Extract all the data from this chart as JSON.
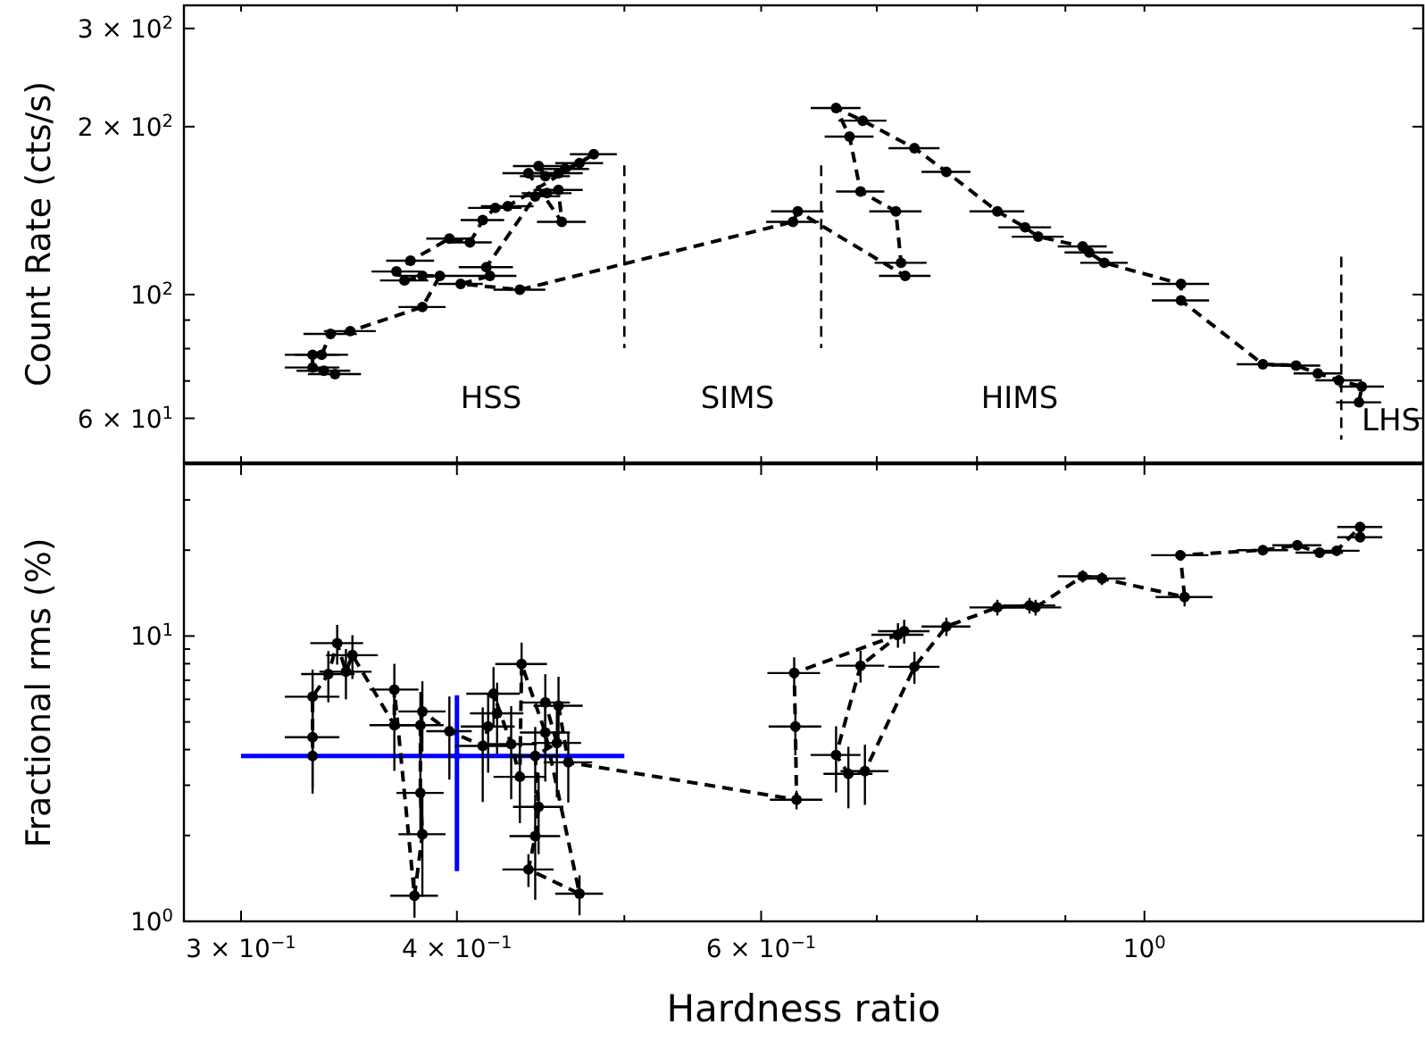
{
  "chart_data": [
    {
      "type": "line",
      "ylabel": "Count Rate (cts/s)",
      "log": "xy",
      "marker": "circle",
      "line_style": "dashed",
      "grid": false,
      "tick_labels": "y",
      "xlim": [
        0.278,
        1.45
      ],
      "xticks": [
        {
          "value": 0.3,
          "label": null
        },
        {
          "value": 0.4,
          "label": null
        },
        {
          "value": 0.5,
          "label": null
        },
        {
          "value": 0.6,
          "label": null
        },
        {
          "value": 0.7,
          "label": null
        },
        {
          "value": 0.8,
          "label": null
        },
        {
          "value": 0.9,
          "label": null
        },
        {
          "value": 1.0,
          "label": null
        }
      ],
      "ylim": [
        50,
        330
      ],
      "yticks": [
        {
          "value": 60,
          "label": "6 × 10$^{1}$"
        },
        {
          "value": 70,
          "label": null
        },
        {
          "value": 80,
          "label": null
        },
        {
          "value": 90,
          "label": null
        },
        {
          "value": 100,
          "label": "10$^{2}$"
        },
        {
          "value": 200,
          "label": "2 × 10$^{2}$"
        },
        {
          "value": 300,
          "label": "3 × 10$^{2}$"
        }
      ],
      "ref_lines": [
        {
          "axis": "x",
          "value": 0.5,
          "line_style": "dashed"
        },
        {
          "axis": "x",
          "value": 0.65,
          "line_style": "dashed"
        },
        {
          "axis": "x",
          "value": 1.3,
          "line_style": "dashed"
        }
      ],
      "annotations": [
        "HSS",
        "SIMS",
        "HIMS",
        "LHS"
      ],
      "series": [
        {
          "color": "#000000",
          "x": [
            1.331,
            1.336,
            1.296,
            1.26,
            1.224,
            1.171,
            1.05,
            1.05,
            0.948,
            0.929,
            0.921,
            0.868,
            0.853,
            0.822,
            0.768,
            0.736,
            0.687,
            0.663,
            0.675,
            0.685,
            0.718,
            0.723,
            0.727,
            0.63,
            0.626,
            0.435,
            0.402,
            0.418,
            0.416,
            0.444,
            0.451,
            0.458,
            0.46,
            0.44,
            0.446,
            0.45,
            0.458,
            0.462,
            0.471,
            0.48,
            0.428,
            0.421,
            0.414,
            0.407,
            0.396,
            0.376,
            0.369,
            0.373,
            0.382,
            0.391,
            0.382,
            0.347,
            0.338,
            0.334,
            0.33,
            0.33,
            0.335,
            0.34
          ],
          "values": [
            64.1,
            68.4,
            70.2,
            72.2,
            74.6,
            75,
            97.6,
            104.5,
            114,
            119,
            122,
            127,
            132,
            141,
            166,
            183,
            205,
            216,
            192,
            153,
            141,
            114,
            108,
            141,
            135,
            102,
            104.5,
            108,
            112,
            150,
            152,
            154,
            135,
            165,
            170,
            163,
            165,
            168,
            172,
            178.5,
            144,
            143,
            136,
            124,
            126,
            115,
            110,
            106,
            108,
            108,
            95,
            86,
            85,
            78,
            78,
            74,
            73,
            72
          ],
          "xerrors": [
            0.04,
            0.04,
            0.04,
            0.04,
            0.04,
            0.04,
            0.04,
            0.04,
            0.03,
            0.03,
            0.03,
            0.03,
            0.03,
            0.03,
            0.025,
            0.025,
            0.022,
            0.022,
            0.022,
            0.022,
            0.025,
            0.025,
            0.025,
            0.022,
            0.022,
            0.015,
            0.012,
            0.015,
            0.015,
            0.015,
            0.015,
            0.015,
            0.015,
            0.015,
            0.015,
            0.015,
            0.015,
            0.015,
            0.015,
            0.015,
            0.015,
            0.015,
            0.012,
            0.012,
            0.012,
            0.012,
            0.012,
            0.012,
            0.012,
            0.012,
            0.012,
            0.012,
            0.012,
            0.012,
            0.012,
            0.012,
            0.012,
            0.012
          ]
        }
      ]
    },
    {
      "type": "line",
      "xlabel": "Hardness ratio",
      "ylabel": "Fractional rms (%)",
      "log": "xy",
      "marker": "circle",
      "line_style": "dashed",
      "grid": false,
      "xlim": [
        0.278,
        1.45
      ],
      "xticks": [
        {
          "value": 0.3,
          "label": "3 × 10$^{−1}$"
        },
        {
          "value": 0.4,
          "label": "4 × 10$^{−1}$"
        },
        {
          "value": 0.5,
          "label": null
        },
        {
          "value": 0.6,
          "label": "6 × 10$^{−1}$"
        },
        {
          "value": 0.7,
          "label": null
        },
        {
          "value": 0.8,
          "label": null
        },
        {
          "value": 0.9,
          "label": null
        },
        {
          "value": 1.0,
          "label": "10$^{0}$"
        }
      ],
      "ylim": [
        1,
        40
      ],
      "yticks": [
        {
          "value": 1,
          "label": "10$^{0}$"
        },
        {
          "value": 2,
          "label": null
        },
        {
          "value": 3,
          "label": null
        },
        {
          "value": 4,
          "label": null
        },
        {
          "value": 5,
          "label": null
        },
        {
          "value": 6,
          "label": null
        },
        {
          "value": 7,
          "label": null
        },
        {
          "value": 8,
          "label": null
        },
        {
          "value": 9,
          "label": null
        },
        {
          "value": 10,
          "label": "10$^{1}$"
        },
        {
          "value": 20,
          "label": null
        },
        {
          "value": 30,
          "label": null
        }
      ],
      "series": [
        {
          "color": "#000000",
          "x": [
            1.333,
            1.333,
            1.292,
            1.263,
            1.226,
            1.171,
            1.049,
            1.055,
            0.945,
            0.921,
            0.865,
            0.858,
            0.822,
            0.768,
            0.736,
            0.689,
            0.674,
            0.663,
            0.685,
            0.726,
            0.72,
            0.627,
            0.628,
            0.629,
            0.464,
            0.458,
            0.45,
            0.457,
            0.444,
            0.446,
            0.444,
            0.44,
            0.471,
            0.45,
            0.436,
            0.435,
            0.43,
            0.42,
            0.422,
            0.417,
            0.414,
            0.396,
            0.382,
            0.381,
            0.381,
            0.382,
            0.378,
            0.368,
            0.368,
            0.348,
            0.345,
            0.341,
            0.337,
            0.33,
            0.33,
            0.33
          ],
          "values": [
            22.2,
            24.1,
            19.9,
            19.6,
            20.8,
            20.0,
            19.2,
            13.7,
            15.9,
            16.2,
            12.6,
            12.8,
            12.6,
            10.8,
            7.8,
            3.36,
            3.29,
            3.83,
            7.87,
            10.4,
            10.1,
            7.42,
            4.82,
            2.67,
            3.61,
            5.7,
            5.85,
            4.22,
            3.8,
            2.52,
            1.99,
            1.52,
            1.25,
            4.59,
            7.98,
            3.21,
            4.18,
            6.28,
            5.36,
            4.82,
            4.12,
            4.64,
            5.44,
            4.87,
            2.82,
            2.02,
            1.23,
            6.49,
            4.87,
            8.57,
            7.5,
            9.44,
            7.36,
            6.13,
            4.42,
            3.8
          ],
          "errors": [
            0.8,
            0.8,
            0.8,
            0.8,
            0.8,
            0.8,
            0.8,
            1.0,
            0.8,
            0.8,
            0.8,
            0.8,
            0.8,
            0.8,
            1.0,
            0.8,
            0.8,
            1.0,
            1.0,
            1.0,
            1.0,
            1.0,
            1.0,
            0.2,
            1.0,
            1.5,
            1.5,
            1.5,
            1.0,
            0.8,
            0.8,
            0.2,
            0.2,
            1.5,
            1.5,
            1.0,
            1.5,
            1.5,
            1.5,
            1.5,
            1.5,
            1.5,
            1.5,
            1.5,
            0.8,
            0.8,
            0.2,
            1.5,
            1.5,
            1.5,
            1.5,
            1.5,
            1.5,
            1.5,
            1.5,
            1.0
          ],
          "xerrors": [
            0.04,
            0.04,
            0.04,
            0.04,
            0.04,
            0.04,
            0.04,
            0.04,
            0.03,
            0.03,
            0.03,
            0.03,
            0.03,
            0.025,
            0.025,
            0.022,
            0.022,
            0.022,
            0.022,
            0.025,
            0.025,
            0.022,
            0.022,
            0.022,
            0.015,
            0.015,
            0.015,
            0.015,
            0.015,
            0.015,
            0.015,
            0.015,
            0.015,
            0.015,
            0.015,
            0.015,
            0.015,
            0.015,
            0.015,
            0.015,
            0.015,
            0.012,
            0.012,
            0.012,
            0.012,
            0.012,
            0.012,
            0.012,
            0.012,
            0.012,
            0.012,
            0.012,
            0.012,
            0.012,
            0.012,
            null
          ]
        },
        {
          "type": "scatter",
          "color": "#0000ff",
          "x": [
            0.4
          ],
          "values": [
            3.8
          ],
          "errors": [
            [
              1.5,
              6.2
            ]
          ],
          "xerrors": [
            [
              0.3,
              0.5
            ]
          ]
        }
      ]
    }
  ]
}
